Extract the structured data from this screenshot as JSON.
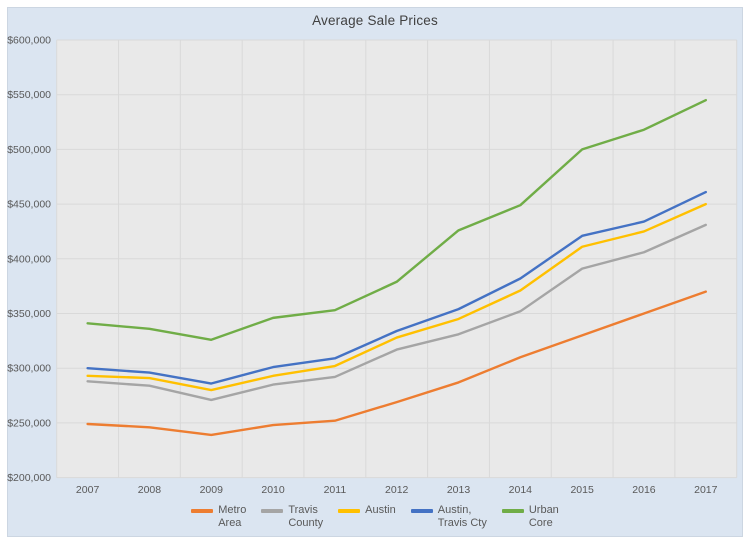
{
  "title": "Average Sale Prices",
  "colors": {
    "page_bg": "#FFFFFF",
    "panel_bg": "#DBE5F1",
    "plot_bg": "#E9E9E9",
    "gridline": "#D9D9D9",
    "title_text": "#404040",
    "axis_text": "#595959"
  },
  "chart_data": {
    "type": "line",
    "title": "Average Sale Prices",
    "xlabel": "",
    "ylabel": "",
    "grid": true,
    "legend_position": "bottom",
    "ylim": [
      200000,
      600000
    ],
    "y_tick_step": 50000,
    "y_tick_labels": [
      "$600,000",
      "$550,000",
      "$500,000",
      "$450,000",
      "$400,000",
      "$350,000",
      "$300,000",
      "$250,000",
      "$200,000"
    ],
    "categories": [
      "2007",
      "2008",
      "2009",
      "2010",
      "2011",
      "2012",
      "2013",
      "2014",
      "2015",
      "2016",
      "2017"
    ],
    "series": [
      {
        "name": "Metro Area",
        "legend_lines": [
          "Metro",
          "Area"
        ],
        "color": "#ED7D31",
        "values": [
          249000,
          246000,
          239000,
          248000,
          252000,
          269000,
          287000,
          310000,
          330000,
          350000,
          370000
        ]
      },
      {
        "name": "Travis County",
        "legend_lines": [
          "Travis",
          "County"
        ],
        "color": "#A5A5A5",
        "values": [
          288000,
          284000,
          271000,
          285000,
          292000,
          317000,
          331000,
          352000,
          391000,
          406000,
          431000
        ]
      },
      {
        "name": "Austin",
        "legend_lines": [
          "Austin"
        ],
        "color": "#FFC000",
        "values": [
          293000,
          291000,
          280000,
          293000,
          302000,
          328000,
          345000,
          371000,
          411000,
          425000,
          450000
        ]
      },
      {
        "name": "Austin, Travis Cty",
        "legend_lines": [
          "Austin,",
          "Travis Cty"
        ],
        "color": "#4472C4",
        "values": [
          300000,
          296000,
          286000,
          301000,
          309000,
          334000,
          354000,
          382000,
          421000,
          434000,
          461000
        ]
      },
      {
        "name": "Urban Core",
        "legend_lines": [
          "Urban",
          "Core"
        ],
        "color": "#70AD47",
        "values": [
          341000,
          336000,
          326000,
          346000,
          353000,
          379000,
          426000,
          449000,
          500000,
          518000,
          545000
        ]
      }
    ]
  }
}
